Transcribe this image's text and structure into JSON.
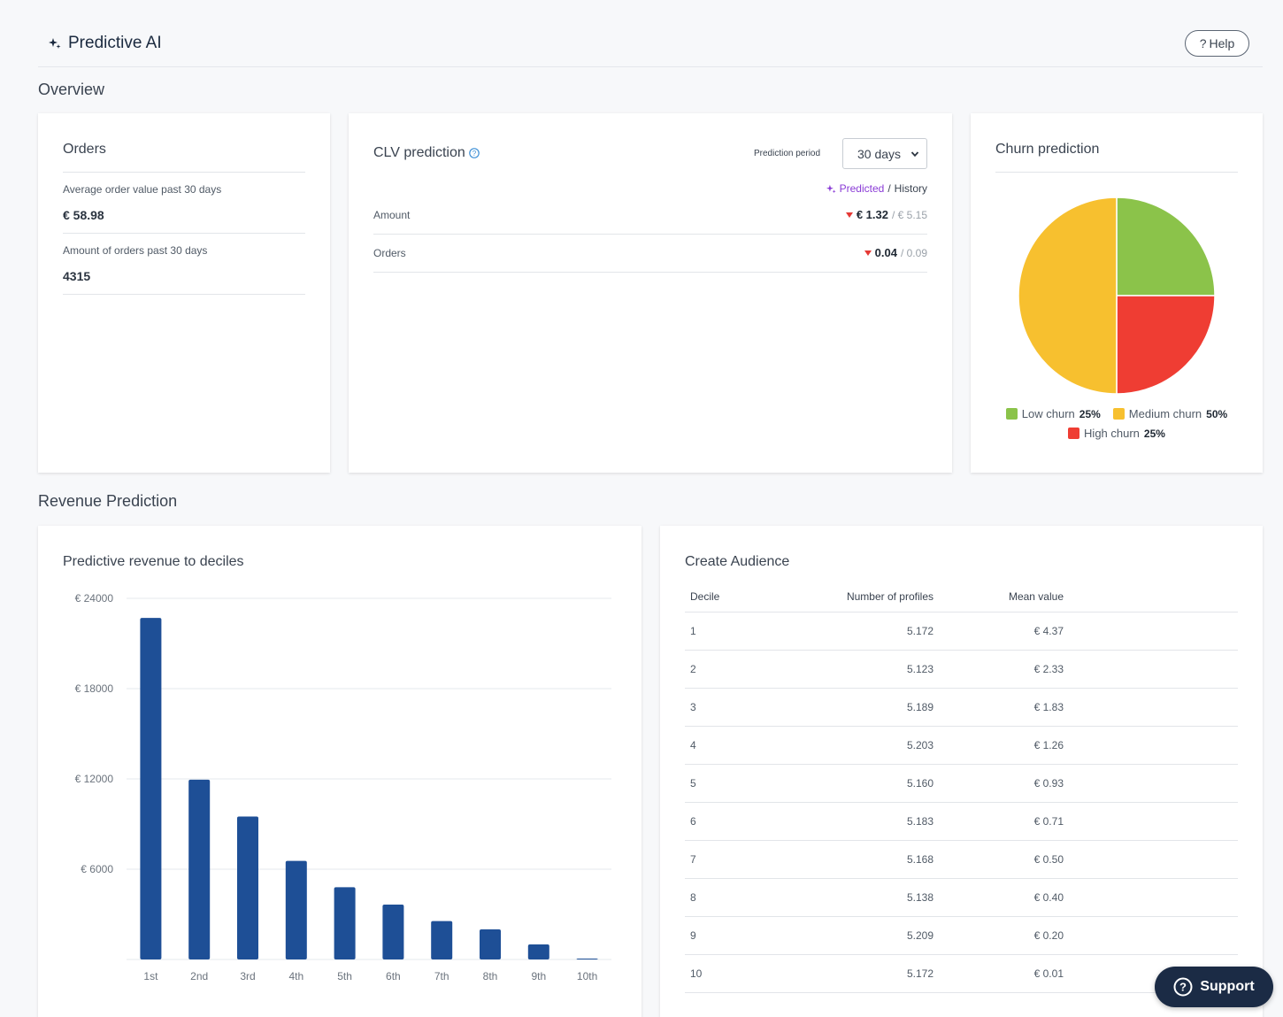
{
  "header": {
    "title": "Predictive AI",
    "help_label": "Help"
  },
  "sections": {
    "overview": "Overview",
    "revenue": "Revenue Prediction"
  },
  "orders": {
    "title": "Orders",
    "avg_label": "Average order value past 30 days",
    "avg_value": "€ 58.98",
    "count_label": "Amount of orders past 30 days",
    "count_value": "4315"
  },
  "clv": {
    "title": "CLV prediction",
    "period_label": "Prediction period",
    "period_value": "30 days",
    "predicted_label": "Predicted",
    "separator": "/",
    "history_label": "History",
    "rows": [
      {
        "label": "Amount",
        "predicted": "€ 1.32",
        "history": "/ € 5.15"
      },
      {
        "label": "Orders",
        "predicted": "0.04",
        "history": "/ 0.09"
      }
    ]
  },
  "churn": {
    "title": "Churn prediction",
    "legend": [
      {
        "label": "Low churn",
        "pct": "25%",
        "color": "#8bc34a"
      },
      {
        "label": "Medium churn",
        "pct": "50%",
        "color": "#f7c02f"
      },
      {
        "label": "High churn",
        "pct": "25%",
        "color": "#ef3d33"
      }
    ]
  },
  "chart_data": {
    "type": "bar",
    "title": "Predictive revenue to deciles",
    "categories": [
      "1st",
      "2nd",
      "3rd",
      "4th",
      "5th",
      "6th",
      "7th",
      "8th",
      "9th",
      "10th"
    ],
    "values": [
      22700,
      11950,
      9500,
      6550,
      4800,
      3650,
      2550,
      2000,
      1000,
      20
    ],
    "yticks": [
      6000,
      12000,
      18000,
      24000
    ],
    "ytick_labels": [
      "€ 6000",
      "€ 12000",
      "€ 18000",
      "€ 24000"
    ],
    "ylim": [
      0,
      24000
    ],
    "color": "#1e4f96",
    "xlabel": "",
    "ylabel": ""
  },
  "audience": {
    "title": "Create Audience",
    "columns": [
      "Decile",
      "Number of profiles",
      "Mean value"
    ],
    "rows": [
      [
        "1",
        "5.172",
        "€ 4.37"
      ],
      [
        "2",
        "5.123",
        "€ 2.33"
      ],
      [
        "3",
        "5.189",
        "€ 1.83"
      ],
      [
        "4",
        "5.203",
        "€ 1.26"
      ],
      [
        "5",
        "5.160",
        "€ 0.93"
      ],
      [
        "6",
        "5.183",
        "€ 0.71"
      ],
      [
        "7",
        "5.168",
        "€ 0.50"
      ],
      [
        "8",
        "5.138",
        "€ 0.40"
      ],
      [
        "9",
        "5.209",
        "€ 0.20"
      ],
      [
        "10",
        "5.172",
        "€ 0.01"
      ]
    ]
  },
  "support": {
    "label": "Support"
  }
}
